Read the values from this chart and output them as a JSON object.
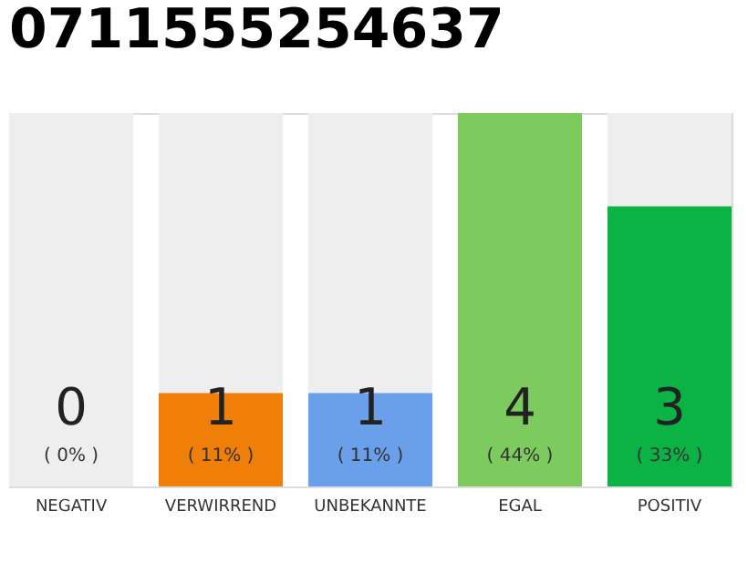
{
  "chart_data": {
    "type": "bar",
    "title": "0711555254637",
    "categories": [
      "NEGATIV",
      "VERWIRREND",
      "UNBEKANNTE",
      "EGAL",
      "POSITIV"
    ],
    "values": [
      0,
      11,
      11,
      44,
      33
    ],
    "colors": [
      "#555555",
      "#f07f09",
      "#6aa0ea",
      "#7dcb5f",
      "#0bb345"
    ],
    "tick_labels": "x",
    "value_labels": [
      "( 0% )",
      "( 11% )",
      "( 11% )",
      "( 44% )",
      "( 33% )"
    ],
    "bands": [
      {
        "axis": "x",
        "from": "NEGATIV",
        "to": "NEGATIV",
        "color": "#eeeeee"
      },
      {
        "axis": "x",
        "from": "VERWIRREND",
        "to": "VERWIRREND",
        "color": "#eeeeee"
      },
      {
        "axis": "x",
        "from": "UNBEKANNTE",
        "to": "UNBEKANNTE",
        "color": "#eeeeee"
      },
      {
        "axis": "x",
        "from": "POSITIV",
        "to": "POSITIV",
        "color": "#eeeeee"
      }
    ],
    "annotations": [
      "0",
      "1",
      "1",
      "4",
      "3"
    ],
    "grid": false
  }
}
